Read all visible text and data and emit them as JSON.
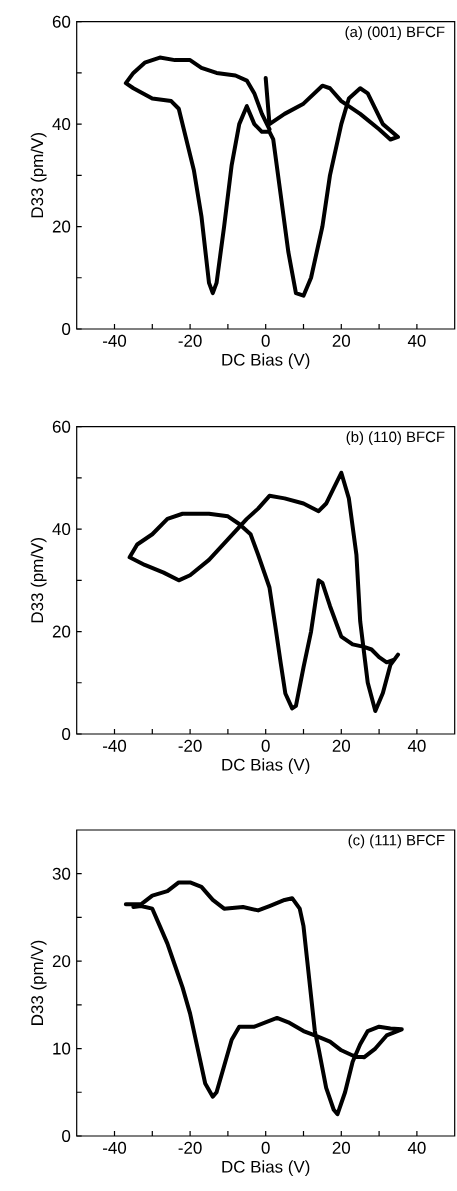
{
  "chart_data": [
    {
      "type": "line",
      "title": "(a) (001) BFCF",
      "xlabel": "DC Bias (V)",
      "ylabel": "D33 (pm/V)",
      "xlim": [
        -50,
        50
      ],
      "ylim": [
        0,
        60
      ],
      "xticks": [
        -40,
        {
          "value": -30,
          "label": null
        },
        -20,
        {
          "value": -10,
          "label": null
        },
        0,
        {
          "value": 10,
          "label": null
        },
        20,
        {
          "value": 30,
          "label": null
        },
        40
      ],
      "yticks": [
        0,
        {
          "value": 10,
          "label": null
        },
        20,
        {
          "value": 30,
          "label": null
        },
        40,
        {
          "value": 50,
          "label": null
        },
        60
      ],
      "series": [
        {
          "color": "#000000",
          "x": [
            0,
            1,
            5,
            10,
            15,
            17,
            20,
            25,
            30,
            33,
            35,
            31,
            27,
            25,
            22,
            20,
            17,
            15,
            12,
            10,
            8,
            6,
            4,
            2,
            1,
            -1,
            -3,
            -5,
            -7,
            -9,
            -11,
            -13,
            -14,
            -15,
            -17,
            -19,
            -21,
            -23,
            -25,
            -30,
            -35,
            -37,
            -35,
            -32,
            -28,
            -24,
            -20,
            -17,
            -13,
            -8,
            -5,
            -3,
            -1,
            1
          ],
          "values": [
            49,
            40,
            42,
            44,
            47.5,
            47,
            44.5,
            42,
            39,
            37,
            37.5,
            40,
            46,
            47,
            45,
            40,
            30,
            20,
            10,
            6.5,
            7,
            15,
            26,
            37,
            38.5,
            38.5,
            40,
            43.5,
            40,
            32,
            20,
            9,
            7,
            9,
            22,
            31,
            37,
            43,
            44.5,
            45,
            47,
            48,
            50,
            52,
            53,
            52.5,
            52.5,
            51,
            50,
            49.5,
            48.5,
            46,
            42,
            39
          ]
        }
      ]
    },
    {
      "type": "line",
      "title": "(b) (110) BFCF",
      "xlabel": "DC Bias (V)",
      "ylabel": "D33 (pm/V)",
      "xlim": [
        -50,
        50
      ],
      "ylim": [
        0,
        60
      ],
      "xticks": [
        -40,
        {
          "value": -30,
          "label": null
        },
        -20,
        {
          "value": -10,
          "label": null
        },
        0,
        {
          "value": 10,
          "label": null
        },
        20,
        {
          "value": 30,
          "label": null
        },
        40
      ],
      "yticks": [
        0,
        {
          "value": 10,
          "label": null
        },
        20,
        {
          "value": 30,
          "label": null
        },
        40,
        {
          "value": 50,
          "label": null
        },
        60
      ],
      "series": [
        {
          "color": "#000000",
          "x": [
            35,
            33,
            31,
            29,
            27,
            25,
            24,
            22,
            20,
            18,
            16,
            14,
            10,
            5,
            1,
            -2,
            -5,
            -10,
            -15,
            -20,
            -23,
            -27,
            -32,
            -36,
            -34,
            -30,
            -26,
            -22,
            -15,
            -10,
            -7,
            -4,
            -2,
            1,
            2.6,
            4,
            5.2,
            7,
            8,
            10,
            12,
            14,
            15,
            17,
            19,
            20,
            23,
            26,
            28,
            30,
            32,
            34
          ],
          "values": [
            15.5,
            13.5,
            8,
            4.5,
            10,
            22,
            35,
            46,
            51,
            48,
            45,
            43.5,
            45,
            46,
            46.5,
            44,
            42,
            38,
            34,
            31,
            30,
            31.5,
            33,
            34.5,
            37,
            39,
            42,
            43,
            43,
            42.5,
            41,
            39,
            35,
            28.6,
            20.8,
            13.7,
            7.9,
            5,
            5.5,
            13,
            20,
            30,
            29.5,
            25,
            21,
            19,
            17.5,
            17,
            16.5,
            15,
            14,
            14.5
          ]
        }
      ]
    },
    {
      "type": "line",
      "title": "(c) (111) BFCF",
      "xlabel": "DC Bias (V)",
      "ylabel": "D33 (pm/V)",
      "xlim": [
        -50,
        50
      ],
      "ylim": [
        0,
        35
      ],
      "xticks": [
        -40,
        {
          "value": -30,
          "label": null
        },
        -20,
        {
          "value": -10,
          "label": null
        },
        0,
        {
          "value": 10,
          "label": null
        },
        20,
        {
          "value": 30,
          "label": null
        },
        40
      ],
      "yticks": [
        0,
        {
          "value": 5,
          "label": null
        },
        10,
        {
          "value": 15,
          "label": null
        },
        20,
        {
          "value": 25,
          "label": null
        },
        30
      ],
      "series": [
        {
          "color": "#000000",
          "x": [
            -37,
            -33,
            -30,
            -26,
            -23,
            -20,
            -17,
            -14,
            -11,
            -6,
            -2,
            1,
            5,
            7,
            9,
            10,
            11,
            12,
            13,
            14,
            16,
            18,
            19,
            21,
            23,
            25,
            27,
            30,
            33,
            36,
            32,
            29,
            26,
            23,
            20,
            17,
            13,
            10,
            6,
            3,
            0,
            -3,
            -7,
            -9,
            -11,
            -13,
            -14,
            -16,
            -18,
            -20,
            -22,
            -24,
            -26,
            -28,
            -30,
            -33,
            -35
          ],
          "values": [
            26.5,
            26.5,
            27.5,
            28,
            29,
            29,
            28.5,
            27,
            26,
            26.2,
            25.8,
            26.3,
            27,
            27.2,
            26,
            24,
            20,
            16,
            12,
            10,
            5.5,
            3,
            2.5,
            5,
            8.5,
            10.5,
            12,
            12.5,
            12.3,
            12.2,
            11.5,
            10,
            9,
            9.2,
            9.8,
            10.8,
            11.5,
            12,
            13,
            13.5,
            13,
            12.5,
            12.5,
            11,
            8,
            5,
            4.5,
            6,
            10,
            14,
            17,
            19.5,
            22,
            24,
            26,
            26.3,
            26.2
          ]
        }
      ]
    }
  ]
}
